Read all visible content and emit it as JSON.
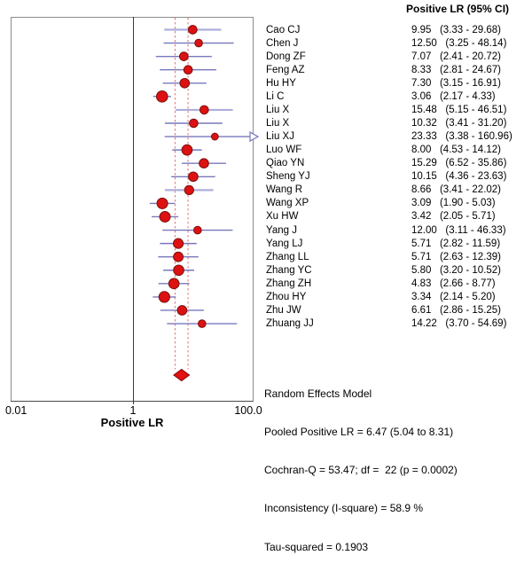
{
  "chart_data": {
    "type": "forest",
    "column_header": "Positive LR (95% CI)",
    "xlabel": "Positive LR",
    "x_scale": "log10",
    "x_axis_ticks": {
      "min": "0.01",
      "unit": "1",
      "max": "100.0"
    },
    "x_range_min": 0.01,
    "x_range_max": 100,
    "studies": [
      {
        "name": "Cao CJ",
        "lr": 9.95,
        "lo": 3.33,
        "hi": 29.68,
        "lr_label": "9.95",
        "ci_label": "(3.33 - 29.68)",
        "light": true
      },
      {
        "name": "Chen J",
        "lr": 12.5,
        "lo": 3.25,
        "hi": 48.14,
        "lr_label": "12.50",
        "ci_label": "(3.25 - 48.14)",
        "light": false
      },
      {
        "name": "Dong ZF",
        "lr": 7.07,
        "lo": 2.41,
        "hi": 20.72,
        "lr_label": "7.07",
        "ci_label": "(2.41 - 20.72)",
        "light": false
      },
      {
        "name": "Feng AZ",
        "lr": 8.33,
        "lo": 2.81,
        "hi": 24.67,
        "lr_label": "8.33",
        "ci_label": "(2.81 - 24.67)",
        "light": false
      },
      {
        "name": "Hu HY",
        "lr": 7.3,
        "lo": 3.15,
        "hi": 16.91,
        "lr_label": "7.30",
        "ci_label": "(3.15 - 16.91)",
        "light": false
      },
      {
        "name": "Li C",
        "lr": 3.06,
        "lo": 2.17,
        "hi": 4.33,
        "lr_label": "3.06",
        "ci_label": "(2.17 - 4.33)",
        "light": false
      },
      {
        "name": "Liu X",
        "lr": 15.48,
        "lo": 5.15,
        "hi": 46.51,
        "lr_label": "15.48",
        "ci_label": "(5.15 - 46.51)",
        "light": true
      },
      {
        "name": "Liu X",
        "lr": 10.32,
        "lo": 3.41,
        "hi": 31.2,
        "lr_label": "10.32",
        "ci_label": "(3.41 - 31.20)",
        "light": false
      },
      {
        "name": "Liu XJ",
        "lr": 23.33,
        "lo": 3.38,
        "hi": 160.96,
        "lr_label": "23.33",
        "ci_label": "(3.38 - 160.96)",
        "light": false
      },
      {
        "name": "Luo WF",
        "lr": 8.0,
        "lo": 4.53,
        "hi": 14.12,
        "lr_label": "8.00",
        "ci_label": "(4.53 - 14.12)",
        "light": false
      },
      {
        "name": "Qiao YN",
        "lr": 15.29,
        "lo": 6.52,
        "hi": 35.86,
        "lr_label": "15.29",
        "ci_label": "(6.52 - 35.86)",
        "light": false
      },
      {
        "name": "Sheng YJ",
        "lr": 10.15,
        "lo": 4.36,
        "hi": 23.63,
        "lr_label": "10.15",
        "ci_label": "(4.36 - 23.63)",
        "light": false
      },
      {
        "name": "Wang R",
        "lr": 8.66,
        "lo": 3.41,
        "hi": 22.02,
        "lr_label": "8.66",
        "ci_label": "(3.41 - 22.02)",
        "light": true
      },
      {
        "name": "Wang XP",
        "lr": 3.09,
        "lo": 1.9,
        "hi": 5.03,
        "lr_label": "3.09",
        "ci_label": "(1.90 - 5.03)",
        "light": false
      },
      {
        "name": "Xu HW",
        "lr": 3.42,
        "lo": 2.05,
        "hi": 5.71,
        "lr_label": "3.42",
        "ci_label": "(2.05 - 5.71)",
        "light": false
      },
      {
        "name": "Yang J",
        "lr": 12.0,
        "lo": 3.11,
        "hi": 46.33,
        "lr_label": "12.00",
        "ci_label": "(3.11 - 46.33)",
        "light": false
      },
      {
        "name": "Yang LJ",
        "lr": 5.71,
        "lo": 2.82,
        "hi": 11.59,
        "lr_label": "5.71",
        "ci_label": "(2.82 - 11.59)",
        "light": false
      },
      {
        "name": "Zhang LL",
        "lr": 5.71,
        "lo": 2.63,
        "hi": 12.39,
        "lr_label": "5.71",
        "ci_label": "(2.63 - 12.39)",
        "light": false
      },
      {
        "name": "Zhang YC",
        "lr": 5.8,
        "lo": 3.2,
        "hi": 10.52,
        "lr_label": "5.80",
        "ci_label": "(3.20 - 10.52)",
        "light": false
      },
      {
        "name": "Zhang ZH",
        "lr": 4.83,
        "lo": 2.66,
        "hi": 8.77,
        "lr_label": "4.83",
        "ci_label": "(2.66 - 8.77)",
        "light": false
      },
      {
        "name": "Zhou HY",
        "lr": 3.34,
        "lo": 2.14,
        "hi": 5.2,
        "lr_label": "3.34",
        "ci_label": "(2.14 - 5.20)",
        "light": false
      },
      {
        "name": "Zhu JW",
        "lr": 6.61,
        "lo": 2.86,
        "hi": 15.25,
        "lr_label": "6.61",
        "ci_label": "(2.86 - 15.25)",
        "light": false
      },
      {
        "name": "Zhuang JJ",
        "lr": 14.22,
        "lo": 3.7,
        "hi": 54.69,
        "lr_label": "14.22",
        "ci_label": "(3.70 - 54.69)",
        "light": false
      }
    ],
    "pooled": {
      "value": 6.47,
      "lo": 5.04,
      "hi": 8.31
    },
    "summary": {
      "lines": [
        "Random Effects Model",
        "Pooled Positive LR = 6.47 (5.04 to 8.31)",
        "Cochran-Q = 53.47; df =  22 (p = 0.0002)",
        "Inconsistency (I-square) = 58.9 %",
        "Tau-squared = 0.1903"
      ]
    },
    "colors": {
      "marker": "#dd1111",
      "marker_stroke": "#7a1010",
      "ci_line": "#7878bd",
      "ci_line_light": "#aeaedd",
      "pooled_dash": "#e07373",
      "diamond": "#e01212",
      "diamond_stroke": "#8b0000",
      "unity_line": "#3a3a3a",
      "box_border": "#8c8c8c",
      "axis_bottom": "#4a4a4a"
    }
  }
}
